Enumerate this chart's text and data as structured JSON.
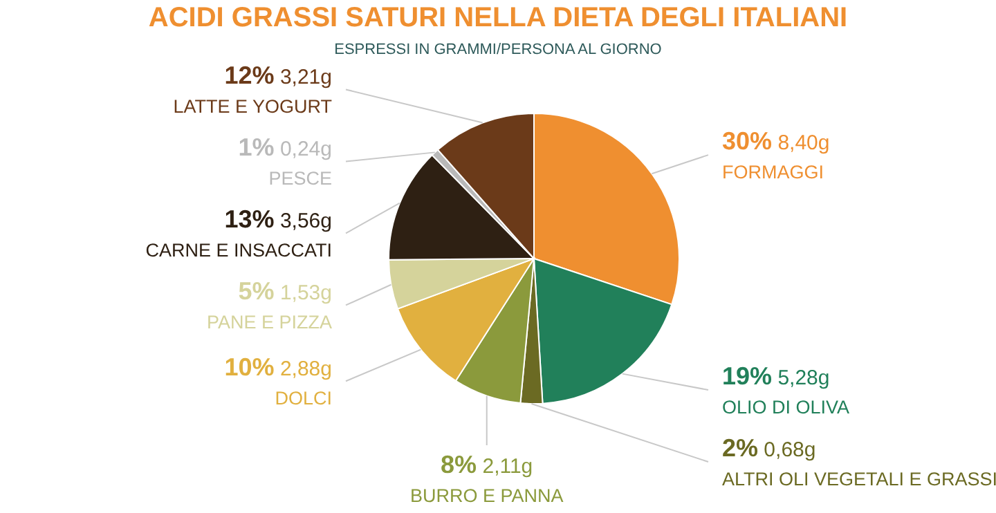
{
  "chart_data": {
    "type": "pie",
    "title": "ACIDI GRASSI SATURI NELLA DIETA DEGLI ITALIANI",
    "subtitle": "ESPRESSI IN GRAMMI/PERSONA AL GIORNO",
    "categories": [
      "FORMAGGI",
      "OLIO DI OLIVA",
      "ALTRI OLI VEGETALI E GRASSI",
      "BURRO E PANNA",
      "DOLCI",
      "PANE E PIZZA",
      "CARNE E INSACCATI",
      "PESCE",
      "LATTE E YOGURT"
    ],
    "values": [
      8.4,
      5.28,
      0.68,
      2.11,
      2.88,
      1.53,
      3.56,
      0.24,
      3.21
    ],
    "value_labels": [
      "30% 8,40g",
      "19% 5,28g",
      "2% 0,68g",
      "8% 2,11g",
      "10% 2,88g",
      "5% 1,53g",
      "13% 3,56g",
      "1% 0,24g",
      "12% 3,21g"
    ],
    "colors": [
      "#ef8f30",
      "#21805a",
      "#6b6a23",
      "#8b9a3c",
      "#e1b03f",
      "#d5d39b",
      "#2e2013",
      "#b9b9b9",
      "#6b3a19"
    ]
  }
}
